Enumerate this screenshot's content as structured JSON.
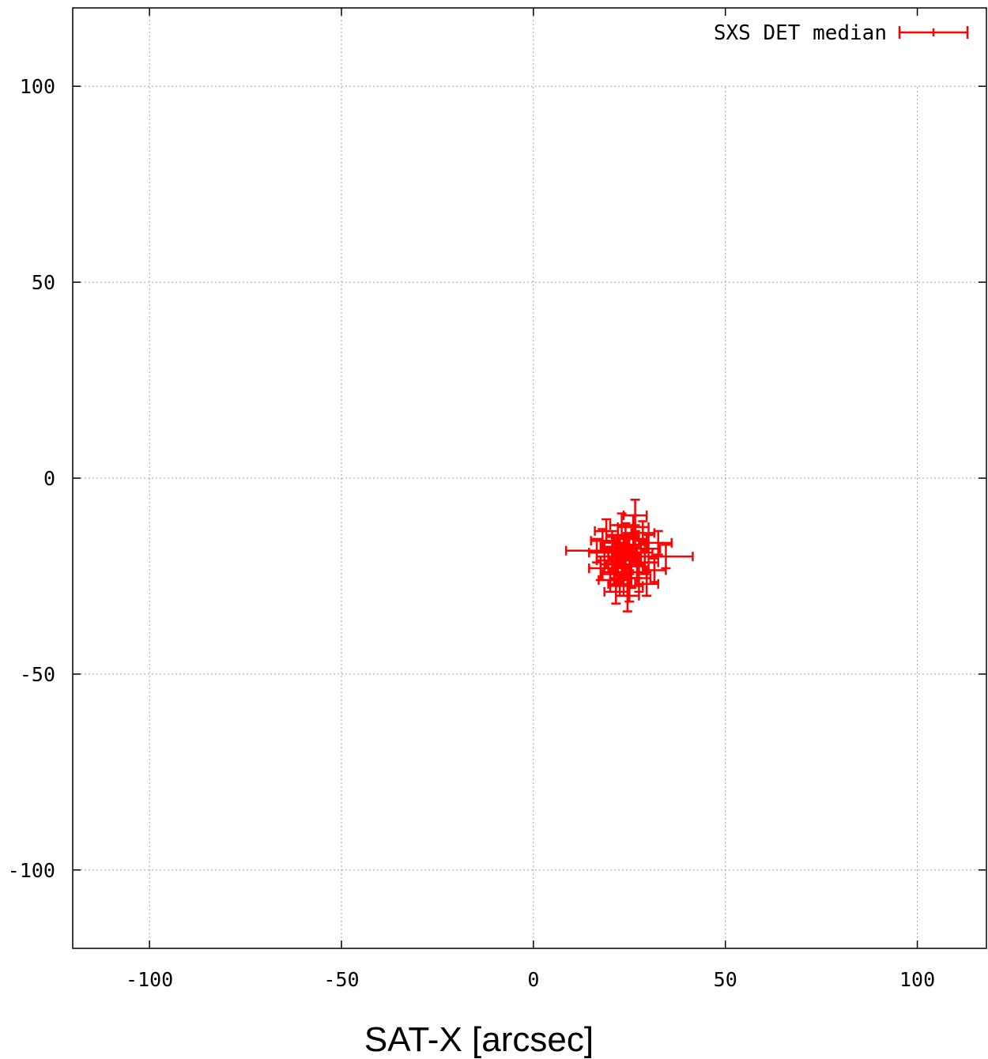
{
  "chart_data": {
    "type": "scatter",
    "title": "",
    "xlabel": "SAT-X [arcsec]",
    "ylabel": "",
    "xlim": [
      -120,
      118
    ],
    "ylim": [
      -120,
      120
    ],
    "xticks": [
      -100,
      -50,
      0,
      50,
      100
    ],
    "yticks": [
      -100,
      -50,
      0,
      50,
      100
    ],
    "xtick_labels": [
      "-100",
      "-50",
      "0",
      "50",
      "100"
    ],
    "ytick_labels": [
      "-100",
      "-50",
      "0",
      "50",
      "100"
    ],
    "grid": true,
    "legend": "top-right",
    "color": "#ff0000",
    "series": [
      {
        "name": "SXS DET median",
        "marker": "errorbar",
        "points": [
          {
            "x": 23.5,
            "y": -19.5,
            "xerr": 3,
            "yerr": 3
          },
          {
            "x": 24.0,
            "y": -20.5,
            "xerr": 3.5,
            "yerr": 4
          },
          {
            "x": 22.5,
            "y": -18.5,
            "xerr": 3,
            "yerr": 3
          },
          {
            "x": 25.0,
            "y": -21.0,
            "xerr": 3,
            "yerr": 3.5
          },
          {
            "x": 23.0,
            "y": -22.0,
            "xerr": 4,
            "yerr": 3
          },
          {
            "x": 26.0,
            "y": -18.0,
            "xerr": 3.5,
            "yerr": 3
          },
          {
            "x": 21.5,
            "y": -20.0,
            "xerr": 3,
            "yerr": 4
          },
          {
            "x": 24.5,
            "y": -17.0,
            "xerr": 3,
            "yerr": 3
          },
          {
            "x": 22.0,
            "y": -23.0,
            "xerr": 3.5,
            "yerr": 3.5
          },
          {
            "x": 27.0,
            "y": -22.5,
            "xerr": 3,
            "yerr": 3
          },
          {
            "x": 25.5,
            "y": -24.0,
            "xerr": 4,
            "yerr": 4
          },
          {
            "x": 20.5,
            "y": -17.5,
            "xerr": 3,
            "yerr": 3
          },
          {
            "x": 28.0,
            "y": -19.0,
            "xerr": 3,
            "yerr": 3
          },
          {
            "x": 23.5,
            "y": -25.5,
            "xerr": 3.5,
            "yerr": 4.5
          },
          {
            "x": 26.5,
            "y": -15.5,
            "xerr": 3,
            "yerr": 3.5
          },
          {
            "x": 21.0,
            "y": -24.5,
            "xerr": 3,
            "yerr": 3
          },
          {
            "x": 29.0,
            "y": -21.5,
            "xerr": 3.5,
            "yerr": 3
          },
          {
            "x": 19.5,
            "y": -21.0,
            "xerr": 3,
            "yerr": 3
          },
          {
            "x": 24.0,
            "y": -14.5,
            "xerr": 3.5,
            "yerr": 3
          },
          {
            "x": 27.5,
            "y": -25.5,
            "xerr": 3,
            "yerr": 3.5
          },
          {
            "x": 22.5,
            "y": -27.0,
            "xerr": 3,
            "yerr": 3
          },
          {
            "x": 25.0,
            "y": -27.5,
            "xerr": 3.5,
            "yerr": 4
          },
          {
            "x": 18.5,
            "y": -19.0,
            "xerr": 4,
            "yerr": 3
          },
          {
            "x": 30.0,
            "y": -18.0,
            "xerr": 3,
            "yerr": 3.5
          },
          {
            "x": 20.0,
            "y": -26.0,
            "xerr": 3,
            "yerr": 3
          },
          {
            "x": 28.5,
            "y": -14.0,
            "xerr": 3,
            "yerr": 3
          },
          {
            "x": 22.0,
            "y": -15.0,
            "xerr": 3,
            "yerr": 3
          },
          {
            "x": 26.0,
            "y": -12.5,
            "xerr": 4,
            "yerr": 3
          },
          {
            "x": 24.5,
            "y": -30.0,
            "xerr": 3,
            "yerr": 4
          },
          {
            "x": 17.5,
            "y": -23.0,
            "xerr": 3,
            "yerr": 3
          },
          {
            "x": 31.5,
            "y": -23.5,
            "xerr": 3,
            "yerr": 3
          },
          {
            "x": 26.5,
            "y": -9.5,
            "xerr": 3,
            "yerr": 4
          },
          {
            "x": 16.5,
            "y": -18.5,
            "xerr": 8,
            "yerr": 3
          },
          {
            "x": 34.5,
            "y": -20.0,
            "xerr": 7,
            "yerr": 3
          },
          {
            "x": 18.0,
            "y": -16.0,
            "xerr": 3,
            "yerr": 3
          },
          {
            "x": 32.5,
            "y": -16.5,
            "xerr": 3.5,
            "yerr": 3
          },
          {
            "x": 21.5,
            "y": -29.0,
            "xerr": 3,
            "yerr": 3
          },
          {
            "x": 29.5,
            "y": -27.0,
            "xerr": 3,
            "yerr": 3
          },
          {
            "x": 23.0,
            "y": -12.0,
            "xerr": 3,
            "yerr": 3
          },
          {
            "x": 19.0,
            "y": -13.5,
            "xerr": 3,
            "yerr": 3
          }
        ]
      }
    ]
  }
}
